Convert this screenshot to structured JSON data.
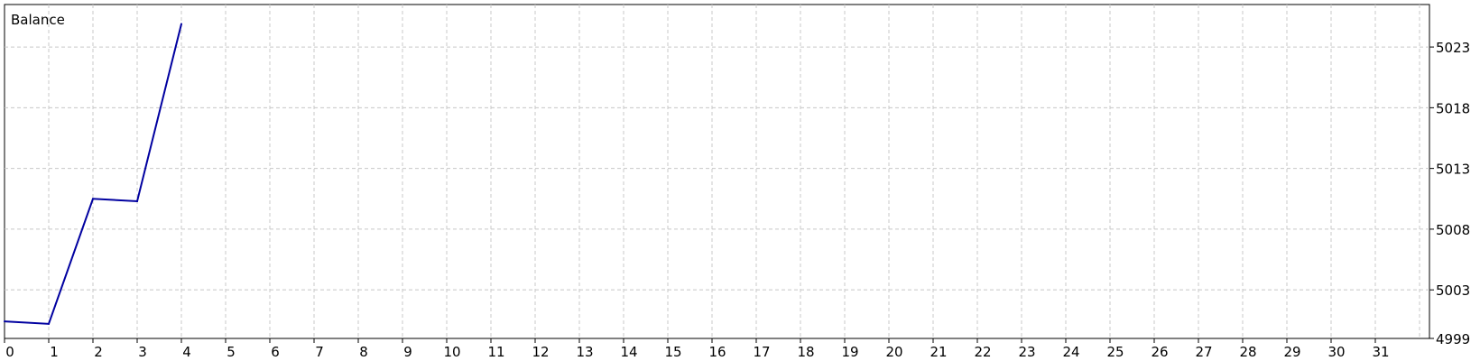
{
  "chart_data": {
    "type": "line",
    "title": "Balance",
    "xlabel": "",
    "ylabel": "",
    "x_ticks": [
      0,
      1,
      2,
      3,
      4,
      5,
      6,
      7,
      8,
      9,
      10,
      11,
      12,
      13,
      14,
      15,
      16,
      17,
      18,
      19,
      20,
      21,
      22,
      23,
      24,
      25,
      26,
      27,
      28,
      29,
      30,
      31
    ],
    "y_ticks": [
      4999,
      5003,
      5008,
      5013,
      5018,
      5023
    ],
    "xlim": [
      0,
      32
    ],
    "ylim": [
      4999,
      5026.5
    ],
    "grid": true,
    "y_axis_position": "right",
    "series": [
      {
        "name": "",
        "color": "#0000a0",
        "x": [
          0,
          1,
          2,
          3,
          4
        ],
        "y": [
          5000.4,
          5000.2,
          5010.5,
          5010.3,
          5024.9
        ]
      }
    ]
  }
}
